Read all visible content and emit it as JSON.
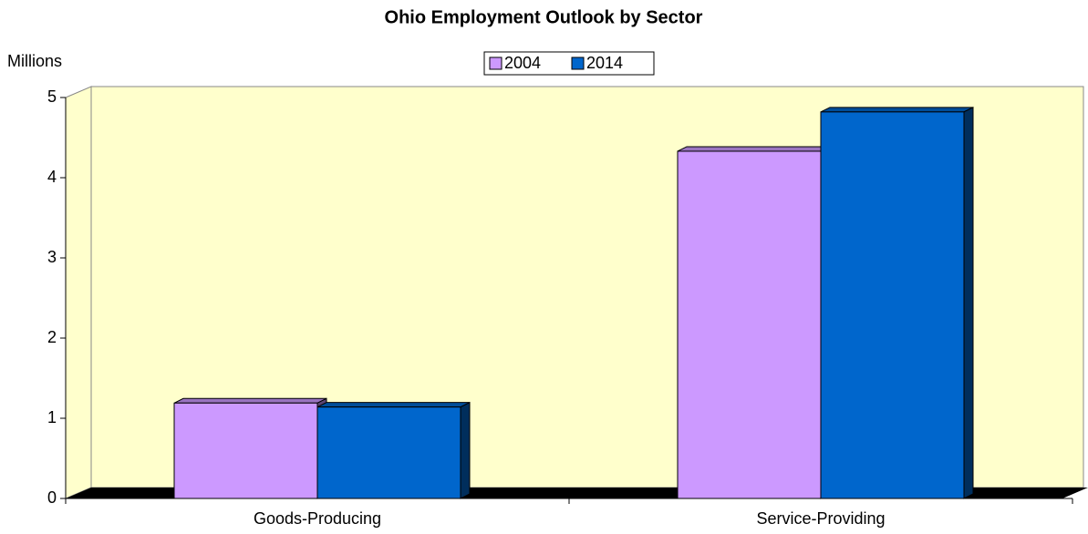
{
  "chart_data": {
    "type": "bar",
    "title": "Ohio Employment Outlook by Sector",
    "y_label": "Millions",
    "categories": [
      "Goods-Producing",
      "Service-Providing"
    ],
    "series": [
      {
        "name": "2004",
        "color": "#cc99ff",
        "values": [
          1.19,
          4.33
        ]
      },
      {
        "name": "2014",
        "color": "#0066cc",
        "values": [
          1.14,
          4.82
        ]
      }
    ],
    "ylim": [
      0,
      5
    ],
    "yticks": [
      0,
      1,
      2,
      3,
      4,
      5
    ],
    "wall_color": "#ffffcc"
  }
}
